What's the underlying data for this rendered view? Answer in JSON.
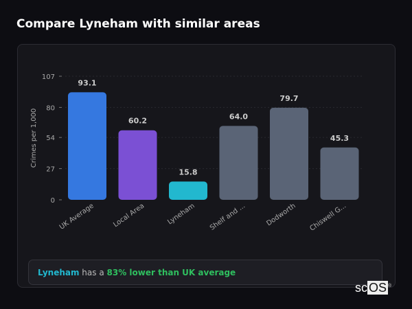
{
  "header": {
    "title": "Compare Lyneham with similar areas"
  },
  "chart_data": {
    "type": "bar",
    "categories": [
      "UK Average",
      "Local Area",
      "Lyneham",
      "Shelf and ...",
      "Dodworth",
      "Chiswell G..."
    ],
    "values": [
      93.1,
      60.2,
      15.8,
      64.0,
      79.7,
      45.3
    ],
    "value_labels": [
      "93.1",
      "60.2",
      "15.8",
      "64.0",
      "79.7",
      "45.3"
    ],
    "colors": [
      "#3578e0",
      "#7b50d4",
      "#22b8cf",
      "#5a6476",
      "#5a6476",
      "#5a6476"
    ],
    "ylabel": "Crimes per 1,000",
    "ylim": [
      0,
      107
    ],
    "yticks": [
      0,
      27,
      54,
      80,
      107
    ],
    "grid": true
  },
  "callout": {
    "area": "Lyneham",
    "middle": " has a ",
    "comparison": "83% lower than UK average"
  },
  "logo": {
    "text_a": "sc",
    "text_b": "OS",
    "mark": "®"
  }
}
